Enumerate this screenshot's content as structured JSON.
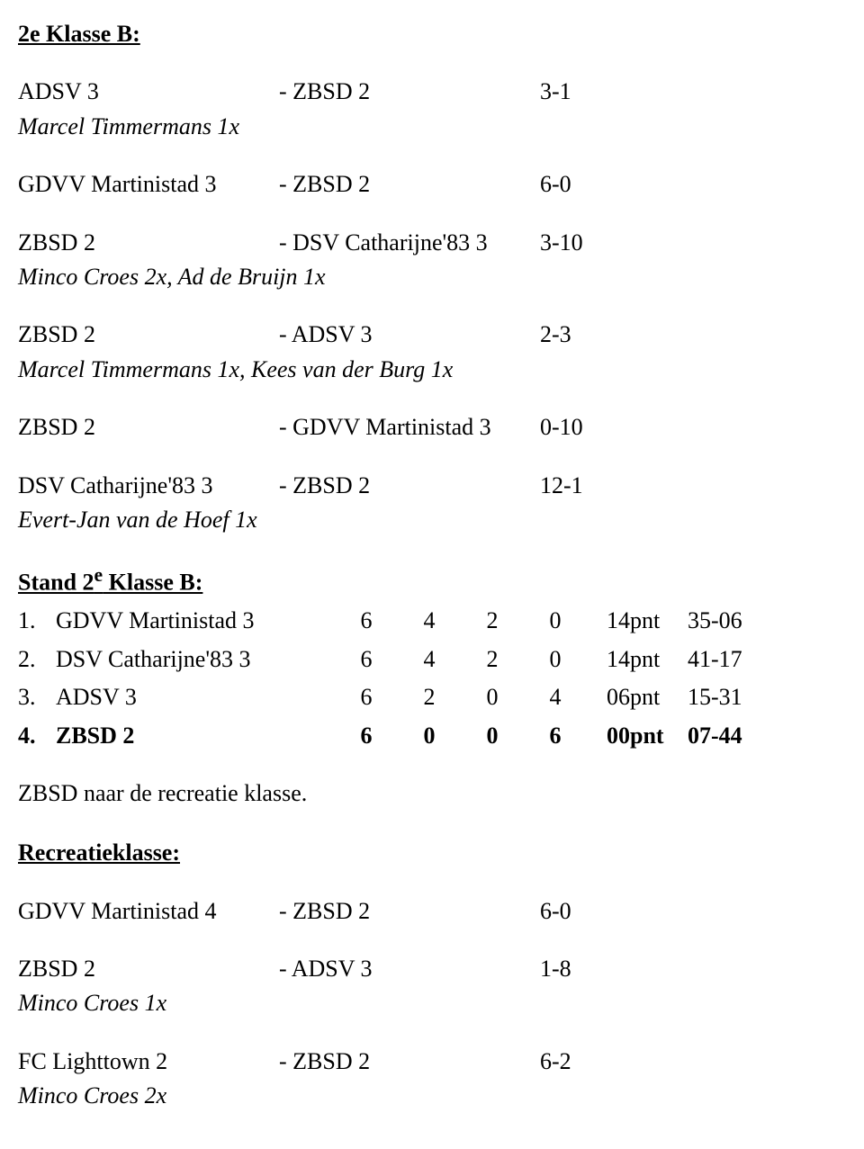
{
  "heading1": "2e Klasse B:",
  "matches1": [
    {
      "home": "ADSV 3",
      "awayPrefix": "- ZBSD 2",
      "score": "3-1",
      "note": "Marcel Timmermans 1x"
    },
    {
      "home": "GDVV Martinistad 3",
      "awayPrefix": "- ZBSD 2",
      "score": "6-0",
      "note": ""
    },
    {
      "home": "ZBSD 2",
      "awayPrefix": "- DSV Catharijne'83 3",
      "score": "3-10",
      "note": "Minco Croes 2x, Ad de Bruijn 1x"
    },
    {
      "home": "ZBSD 2",
      "awayPrefix": "- ADSV 3",
      "score": "2-3",
      "note": "Marcel Timmermans 1x, Kees van der Burg 1x"
    },
    {
      "home": "ZBSD 2",
      "awayPrefix": "- GDVV Martinistad 3",
      "score": "0-10",
      "note": ""
    },
    {
      "home": "DSV Catharijne'83 3",
      "awayPrefix": "- ZBSD 2",
      "score": "12-1",
      "note": "Evert-Jan van de Hoef 1x"
    }
  ],
  "standHeadingPrefix": "Stand 2",
  "standHeadingSuper": "e",
  "standHeadingSuffix": " Klasse B:",
  "standings": [
    {
      "idx": "1.",
      "team": "GDVV Martinistad 3",
      "p": "6",
      "w": "4",
      "d": "2",
      "l": "0",
      "pts": "14pnt",
      "gd": "35-06",
      "bold": false
    },
    {
      "idx": "2.",
      "team": "DSV Catharijne'83 3",
      "p": "6",
      "w": "4",
      "d": "2",
      "l": "0",
      "pts": "14pnt",
      "gd": "41-17",
      "bold": false
    },
    {
      "idx": "3.",
      "team": "ADSV 3",
      "p": "6",
      "w": "2",
      "d": "0",
      "l": "4",
      "pts": "06pnt",
      "gd": "15-31",
      "bold": false
    },
    {
      "idx": "4.",
      "team": "ZBSD 2",
      "p": "6",
      "w": "0",
      "d": "0",
      "l": "6",
      "pts": "00pnt",
      "gd": "07-44",
      "bold": true
    }
  ],
  "relegationNote": "ZBSD naar de recreatie klasse.",
  "heading2": "Recreatieklasse:",
  "matches2": [
    {
      "home": "GDVV Martinistad 4",
      "awayPrefix": "- ZBSD 2",
      "score": "6-0",
      "note": ""
    },
    {
      "home": "ZBSD 2",
      "awayPrefix": "- ADSV 3",
      "score": "1-8",
      "note": "Minco Croes 1x"
    },
    {
      "home": "FC Lighttown 2",
      "awayPrefix": "- ZBSD 2",
      "score": "6-2",
      "note": "Minco Croes 2x"
    }
  ]
}
